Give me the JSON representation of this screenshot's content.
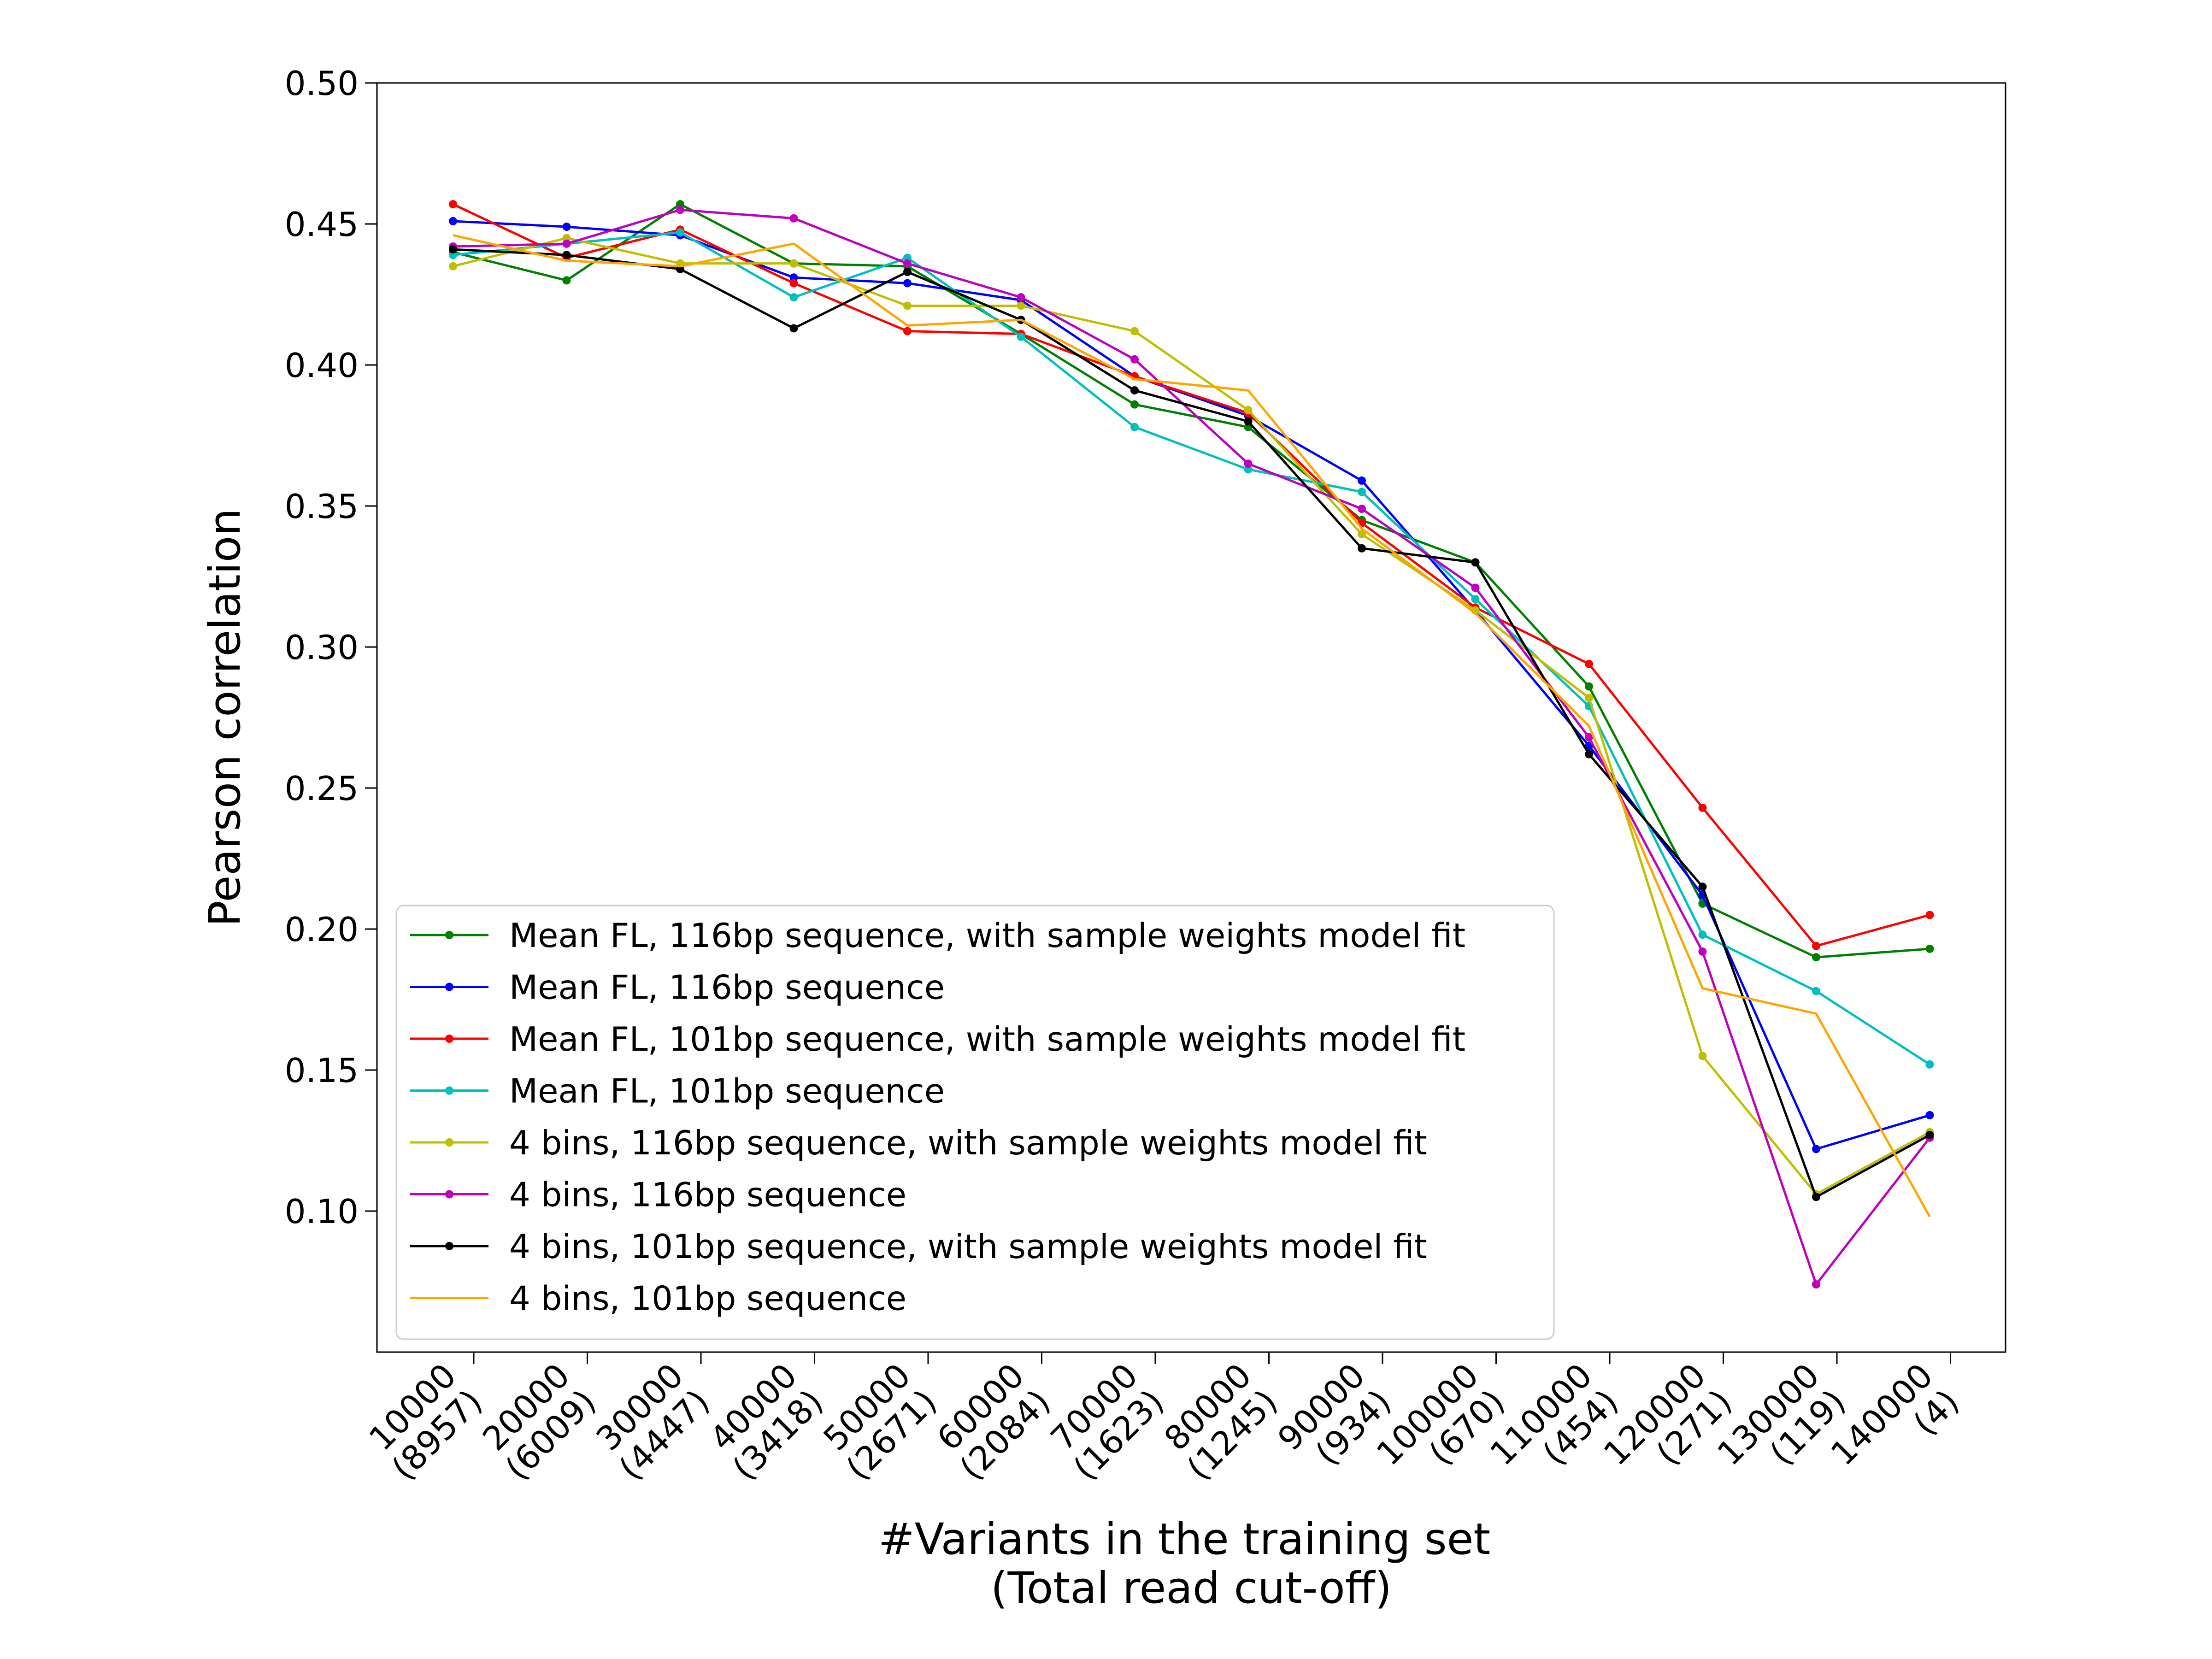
{
  "chart_data": {
    "type": "line",
    "ylabel": "Pearson correlation",
    "xlabel": [
      "#Variants in the training set",
      "(Total read cut-off)"
    ],
    "ylim": [
      0.05,
      0.5
    ],
    "yticks": [
      0.1,
      0.15,
      0.2,
      0.25,
      0.3,
      0.35,
      0.4,
      0.45,
      0.5
    ],
    "ytick_labels": [
      "0.10",
      "0.15",
      "0.20",
      "0.25",
      "0.30",
      "0.35",
      "0.40",
      "0.45",
      "0.50"
    ],
    "categories": [
      [
        "10000",
        "(8957)"
      ],
      [
        "20000",
        "(6009)"
      ],
      [
        "30000",
        "(4447)"
      ],
      [
        "40000",
        "(3418)"
      ],
      [
        "50000",
        "(2671)"
      ],
      [
        "60000",
        "(2084)"
      ],
      [
        "70000",
        "(1623)"
      ],
      [
        "80000",
        "(1245)"
      ],
      [
        "90000",
        "(934)"
      ],
      [
        "100000",
        "(670)"
      ],
      [
        "110000",
        "(454)"
      ],
      [
        "120000",
        "(271)"
      ],
      [
        "130000",
        "(119)"
      ],
      [
        "140000",
        "(4)"
      ]
    ],
    "grid": false,
    "legend_position": "lower-left",
    "series": [
      {
        "name": "Mean FL, 116bp sequence, with sample weights model fit",
        "color": "#008000",
        "markers": true,
        "values": [
          0.44,
          0.43,
          0.457,
          0.436,
          0.435,
          0.411,
          0.386,
          0.378,
          0.345,
          0.33,
          0.286,
          0.209,
          0.19,
          0.193
        ]
      },
      {
        "name": "Mean FL, 116bp sequence",
        "color": "#0000ff",
        "markers": true,
        "values": [
          0.451,
          0.449,
          0.446,
          0.431,
          0.429,
          0.423,
          0.396,
          0.382,
          0.359,
          0.313,
          0.265,
          0.212,
          0.122,
          0.134
        ]
      },
      {
        "name": "Mean FL, 101bp sequence, with sample weights model fit",
        "color": "#ff0000",
        "markers": true,
        "values": [
          0.457,
          0.438,
          0.448,
          0.429,
          0.412,
          0.411,
          0.396,
          0.383,
          0.344,
          0.314,
          0.294,
          0.243,
          0.194,
          0.205
        ]
      },
      {
        "name": "Mean FL, 101bp sequence",
        "color": "#00bfbf",
        "markers": true,
        "values": [
          0.439,
          0.443,
          0.447,
          0.424,
          0.438,
          0.41,
          0.378,
          0.363,
          0.355,
          0.317,
          0.279,
          0.198,
          0.178,
          0.152
        ]
      },
      {
        "name": "4 bins, 116bp sequence, with sample weights model fit",
        "color": "#bfbf00",
        "markers": true,
        "values": [
          0.435,
          0.445,
          0.436,
          0.436,
          0.421,
          0.421,
          0.412,
          0.384,
          0.34,
          0.313,
          0.282,
          0.155,
          0.106,
          0.128
        ]
      },
      {
        "name": "4 bins, 116bp sequence",
        "color": "#bf00bf",
        "markers": true,
        "values": [
          0.442,
          0.443,
          0.455,
          0.452,
          0.436,
          0.424,
          0.402,
          0.365,
          0.349,
          0.321,
          0.268,
          0.192,
          0.074,
          0.126
        ]
      },
      {
        "name": "4 bins, 101bp sequence, with sample weights model fit",
        "color": "#000000",
        "markers": true,
        "values": [
          0.441,
          0.439,
          0.434,
          0.413,
          0.433,
          0.416,
          0.391,
          0.38,
          0.335,
          0.33,
          0.262,
          0.215,
          0.105,
          0.127
        ]
      },
      {
        "name": "4 bins, 101bp sequence",
        "color": "#ffa500",
        "markers": false,
        "values": [
          0.446,
          0.437,
          0.435,
          0.443,
          0.414,
          0.416,
          0.395,
          0.391,
          0.342,
          0.312,
          0.272,
          0.179,
          0.17,
          0.098
        ]
      }
    ]
  }
}
